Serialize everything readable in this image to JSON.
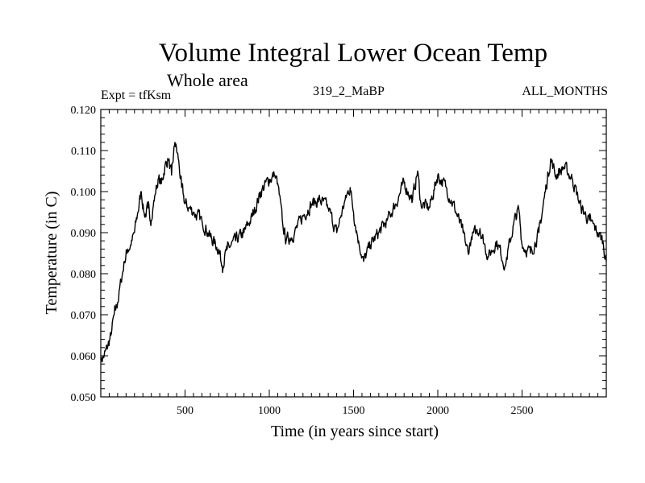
{
  "chart_data": {
    "type": "line",
    "title": "Volume Integral Lower Ocean Temp",
    "subtitle": "Whole area",
    "experiment": "Expt = tfKsm",
    "run_label": "319_2_MaBP",
    "period_label": "ALL_MONTHS",
    "xlabel": "Time (in years since start)",
    "ylabel": "Temperature (in C)",
    "xlim": [
      0,
      3000
    ],
    "ylim": [
      0.05,
      0.12
    ],
    "xticks": [
      500,
      1000,
      1500,
      2000,
      2500
    ],
    "xtick_labels": [
      "500",
      "1000",
      "1500",
      "2000",
      "2500"
    ],
    "yticks": [
      0.05,
      0.06,
      0.07,
      0.08,
      0.09,
      0.1,
      0.11,
      0.12
    ],
    "ytick_labels": [
      "0.050",
      "0.060",
      "0.070",
      "0.080",
      "0.090",
      "0.100",
      "0.110",
      "0.120"
    ],
    "series": [
      {
        "name": "Volume Integral Lower Ocean Temp",
        "x": [
          0,
          20,
          40,
          60,
          80,
          100,
          120,
          140,
          160,
          180,
          200,
          220,
          240,
          260,
          280,
          300,
          320,
          340,
          360,
          380,
          400,
          420,
          440,
          460,
          480,
          500,
          550,
          600,
          650,
          700,
          720,
          750,
          800,
          850,
          900,
          950,
          1000,
          1030,
          1050,
          1080,
          1100,
          1150,
          1200,
          1250,
          1300,
          1350,
          1400,
          1450,
          1480,
          1500,
          1530,
          1560,
          1600,
          1650,
          1700,
          1750,
          1800,
          1850,
          1880,
          1900,
          1950,
          2000,
          2050,
          2100,
          2150,
          2180,
          2200,
          2250,
          2300,
          2350,
          2400,
          2450,
          2480,
          2500,
          2550,
          2600,
          2650,
          2670,
          2700,
          2750,
          2800,
          2850,
          2900,
          2950,
          2980,
          3000
        ],
        "y": [
          0.059,
          0.06,
          0.062,
          0.065,
          0.07,
          0.073,
          0.078,
          0.083,
          0.086,
          0.087,
          0.09,
          0.095,
          0.1,
          0.094,
          0.096,
          0.093,
          0.099,
          0.103,
          0.102,
          0.106,
          0.108,
          0.104,
          0.112,
          0.108,
          0.101,
          0.097,
          0.095,
          0.093,
          0.089,
          0.086,
          0.082,
          0.086,
          0.088,
          0.09,
          0.094,
          0.1,
          0.103,
          0.104,
          0.102,
          0.092,
          0.088,
          0.09,
          0.094,
          0.097,
          0.098,
          0.096,
          0.09,
          0.098,
          0.101,
          0.095,
          0.088,
          0.083,
          0.087,
          0.09,
          0.093,
          0.097,
          0.102,
          0.098,
          0.105,
          0.097,
          0.096,
          0.104,
          0.101,
          0.096,
          0.09,
          0.085,
          0.089,
          0.091,
          0.084,
          0.088,
          0.082,
          0.092,
          0.096,
          0.087,
          0.085,
          0.09,
          0.103,
          0.108,
          0.104,
          0.106,
          0.103,
          0.096,
          0.093,
          0.09,
          0.088,
          0.083
        ]
      }
    ]
  }
}
